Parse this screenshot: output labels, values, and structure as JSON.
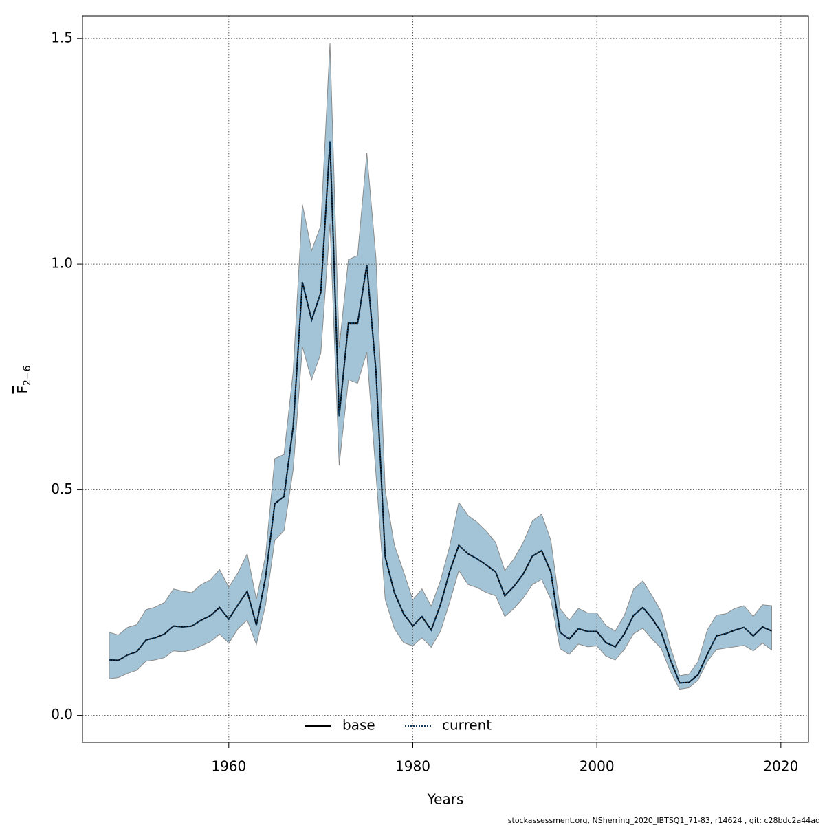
{
  "chart_data": {
    "type": "line",
    "xlabel": "Years",
    "ylabel": "F",
    "ylabel_sub": "2−6",
    "footnote": "stockassessment.org, NSherring_2020_IBTSQ1_71-83, r14624 , git: c28bdc2a44ad",
    "x": [
      1947,
      1948,
      1949,
      1950,
      1951,
      1952,
      1953,
      1954,
      1955,
      1956,
      1957,
      1958,
      1959,
      1960,
      1961,
      1962,
      1963,
      1964,
      1965,
      1966,
      1967,
      1968,
      1969,
      1970,
      1971,
      1972,
      1973,
      1974,
      1975,
      1976,
      1977,
      1978,
      1979,
      1980,
      1981,
      1982,
      1983,
      1984,
      1985,
      1986,
      1987,
      1988,
      1989,
      1990,
      1991,
      1992,
      1993,
      1994,
      1995,
      1996,
      1997,
      1998,
      1999,
      2000,
      2001,
      2002,
      2003,
      2004,
      2005,
      2006,
      2007,
      2008,
      2009,
      2010,
      2011,
      2012,
      2013,
      2014,
      2015,
      2016,
      2017,
      2018,
      2019
    ],
    "series": [
      {
        "name": "base",
        "color": "#000000",
        "dash": false,
        "values": [
          0.123,
          0.122,
          0.134,
          0.141,
          0.167,
          0.172,
          0.18,
          0.198,
          0.196,
          0.198,
          0.211,
          0.221,
          0.239,
          0.213,
          0.245,
          0.275,
          0.2,
          0.306,
          0.469,
          0.485,
          0.64,
          0.96,
          0.876,
          0.937,
          1.272,
          0.663,
          0.869,
          0.869,
          0.998,
          0.762,
          0.351,
          0.272,
          0.225,
          0.198,
          0.219,
          0.189,
          0.245,
          0.318,
          0.377,
          0.358,
          0.347,
          0.333,
          0.318,
          0.265,
          0.286,
          0.313,
          0.353,
          0.365,
          0.318,
          0.184,
          0.169,
          0.192,
          0.186,
          0.186,
          0.161,
          0.152,
          0.181,
          0.222,
          0.239,
          0.215,
          0.184,
          0.123,
          0.072,
          0.073,
          0.09,
          0.135,
          0.176,
          0.181,
          0.189,
          0.195,
          0.176,
          0.196,
          0.187
        ]
      },
      {
        "name": "current",
        "color": "#0b3d66",
        "dash": true,
        "band_color": "#a3c4d6",
        "band_edge": "#8a8a8a",
        "values": [
          0.123,
          0.122,
          0.134,
          0.141,
          0.167,
          0.172,
          0.18,
          0.198,
          0.196,
          0.198,
          0.211,
          0.221,
          0.239,
          0.213,
          0.245,
          0.275,
          0.2,
          0.306,
          0.469,
          0.485,
          0.64,
          0.96,
          0.876,
          0.937,
          1.272,
          0.663,
          0.869,
          0.869,
          0.998,
          0.762,
          0.351,
          0.272,
          0.225,
          0.198,
          0.219,
          0.189,
          0.245,
          0.318,
          0.377,
          0.358,
          0.347,
          0.333,
          0.318,
          0.265,
          0.286,
          0.313,
          0.353,
          0.365,
          0.318,
          0.184,
          0.169,
          0.192,
          0.186,
          0.186,
          0.161,
          0.152,
          0.181,
          0.222,
          0.239,
          0.215,
          0.184,
          0.123,
          0.072,
          0.073,
          0.09,
          0.135,
          0.176,
          0.181,
          0.189,
          0.195,
          0.176,
          0.196,
          0.187
        ],
        "upper": [
          0.184,
          0.178,
          0.195,
          0.201,
          0.234,
          0.24,
          0.25,
          0.28,
          0.275,
          0.272,
          0.29,
          0.3,
          0.323,
          0.284,
          0.316,
          0.358,
          0.257,
          0.354,
          0.569,
          0.578,
          0.762,
          1.132,
          1.03,
          1.085,
          1.489,
          0.815,
          1.01,
          1.019,
          1.246,
          1.013,
          0.499,
          0.377,
          0.318,
          0.256,
          0.28,
          0.242,
          0.298,
          0.374,
          0.472,
          0.443,
          0.428,
          0.408,
          0.383,
          0.321,
          0.347,
          0.383,
          0.431,
          0.446,
          0.388,
          0.237,
          0.211,
          0.237,
          0.227,
          0.227,
          0.199,
          0.187,
          0.222,
          0.28,
          0.298,
          0.265,
          0.23,
          0.151,
          0.088,
          0.091,
          0.119,
          0.189,
          0.222,
          0.225,
          0.237,
          0.243,
          0.219,
          0.245,
          0.243
        ],
        "lower": [
          0.081,
          0.084,
          0.093,
          0.1,
          0.12,
          0.123,
          0.128,
          0.143,
          0.141,
          0.145,
          0.154,
          0.163,
          0.18,
          0.16,
          0.192,
          0.211,
          0.157,
          0.245,
          0.388,
          0.409,
          0.545,
          0.817,
          0.744,
          0.802,
          1.089,
          0.554,
          0.744,
          0.736,
          0.805,
          0.534,
          0.257,
          0.192,
          0.161,
          0.154,
          0.172,
          0.151,
          0.186,
          0.25,
          0.321,
          0.29,
          0.283,
          0.272,
          0.265,
          0.219,
          0.237,
          0.26,
          0.29,
          0.301,
          0.257,
          0.148,
          0.135,
          0.158,
          0.152,
          0.154,
          0.131,
          0.123,
          0.146,
          0.181,
          0.193,
          0.169,
          0.148,
          0.097,
          0.058,
          0.061,
          0.078,
          0.119,
          0.146,
          0.149,
          0.152,
          0.155,
          0.143,
          0.16,
          0.145
        ]
      }
    ],
    "xlim": [
      1944.1,
      2023.0
    ],
    "ylim": [
      -0.06,
      1.55
    ],
    "xticks": [
      1960,
      1980,
      2000,
      2020
    ],
    "yticks": [
      {
        "value": 0,
        "label": "0.0"
      },
      0.5,
      {
        "value": 1,
        "label": "1.0"
      },
      1.5
    ],
    "grid": true,
    "legend": "bottom"
  }
}
